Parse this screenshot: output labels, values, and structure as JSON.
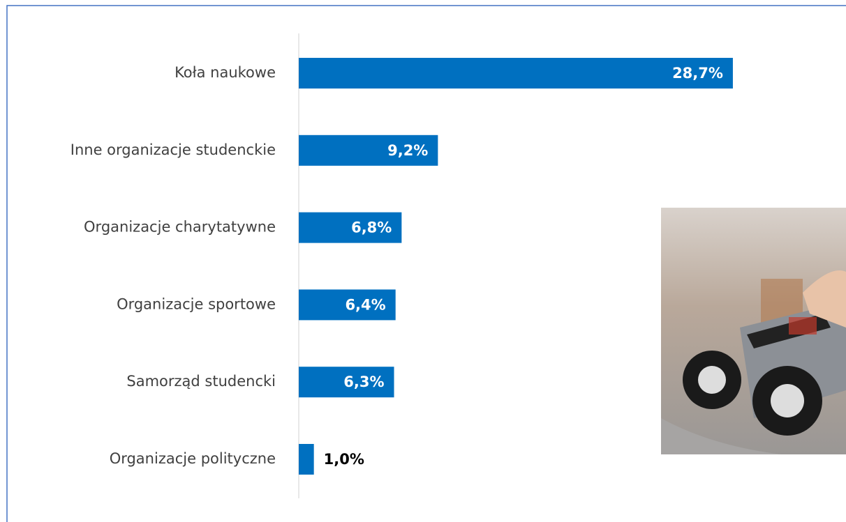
{
  "chart_data": {
    "type": "bar",
    "orientation": "horizontal",
    "categories": [
      "Koła naukowe",
      "Inne organizacje studenckie",
      "Organizacje charytatywne",
      "Organizacje sportowe",
      "Samorząd studencki",
      "Organizacje polityczne"
    ],
    "values": [
      28.7,
      9.2,
      6.8,
      6.4,
      6.3,
      1.0
    ],
    "value_labels": [
      "28,7%",
      "9,2%",
      "6,8%",
      "6,4%",
      "6,3%",
      "1,0%"
    ],
    "color": "#0070c0"
  }
}
